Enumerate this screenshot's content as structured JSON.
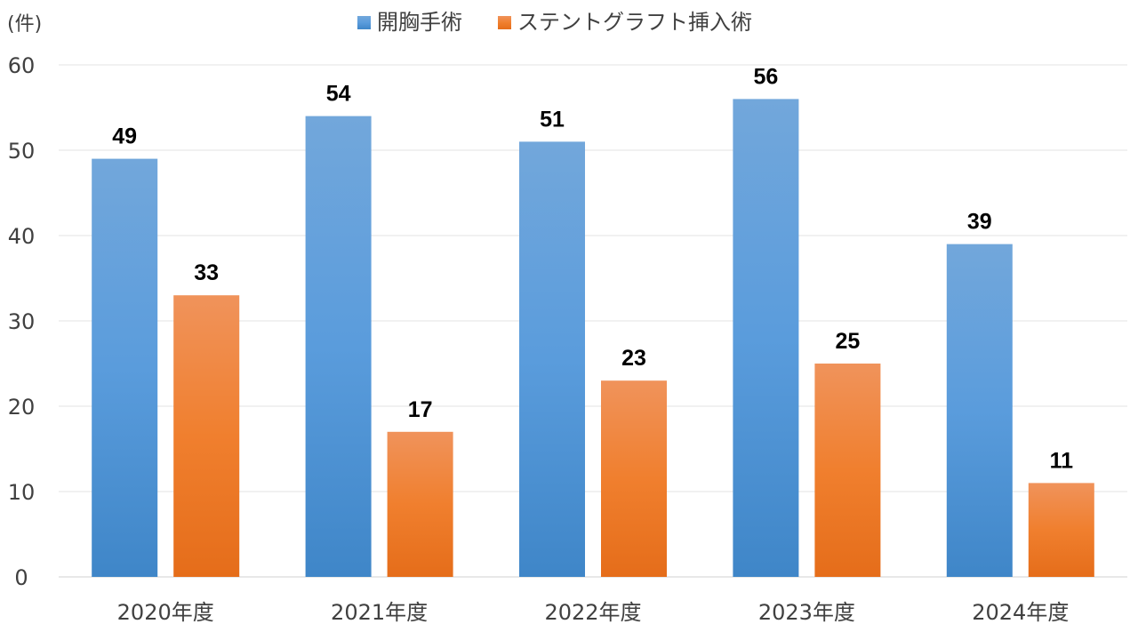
{
  "chart_data": {
    "type": "bar",
    "title": "",
    "xlabel": "",
    "ylabel": "(件)",
    "categories": [
      "2020年度",
      "2021年度",
      "2022年度",
      "2023年度",
      "2024年度"
    ],
    "series": [
      {
        "name": "開胸手術",
        "values": [
          49,
          54,
          51,
          56,
          39
        ],
        "color": "#5B9BD5"
      },
      {
        "name": "ステントグラフト挿入術",
        "values": [
          33,
          17,
          23,
          25,
          11
        ],
        "color": "#ED7D31"
      }
    ],
    "ylim": [
      0,
      60
    ],
    "yticks": [
      0,
      10,
      20,
      30,
      40,
      50,
      60
    ],
    "grid": true,
    "legend_position": "top",
    "data_labels": true
  }
}
